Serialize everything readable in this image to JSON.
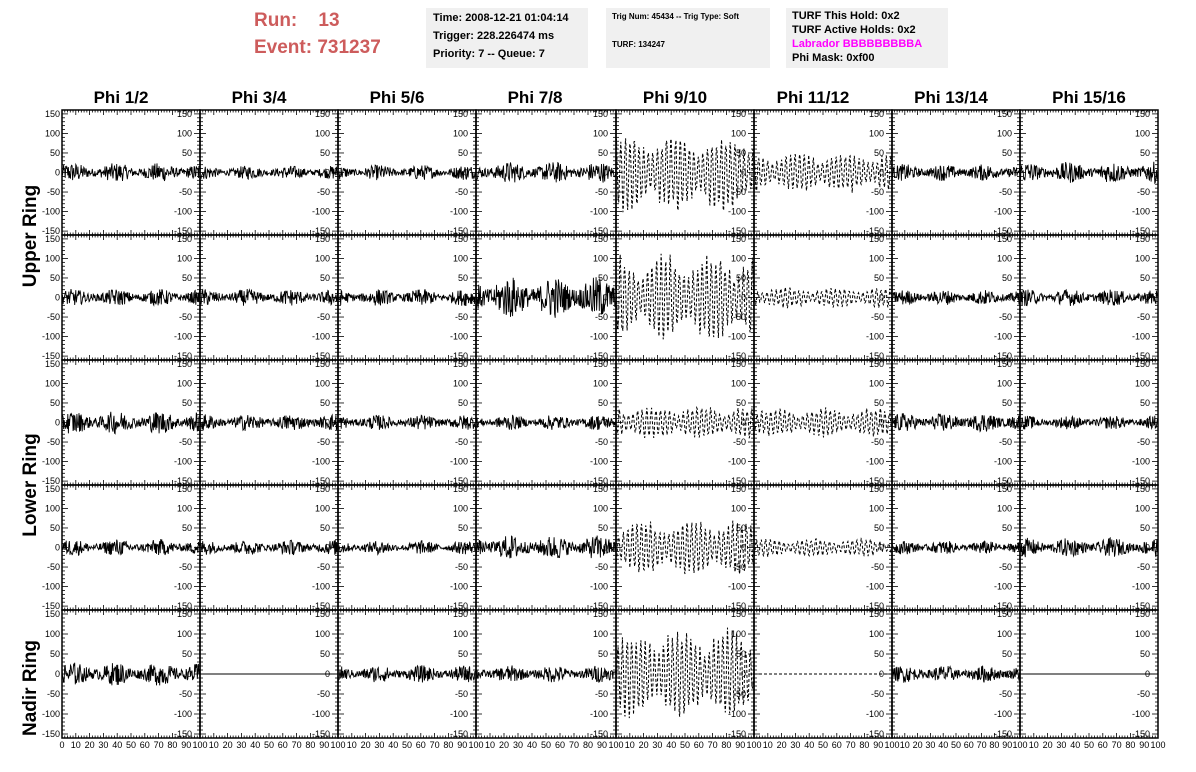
{
  "header": {
    "run_label": "Run:",
    "run_value": "13",
    "event_label": "Event:",
    "event_value": "731237"
  },
  "info_time": {
    "time": "Time: 2008-12-21 01:04:14",
    "trigger": "Trigger: 228.226474 ms",
    "priority": "Priority: 7 -- Queue: 7"
  },
  "info_trig": {
    "trig": "Trig Num: 45434 -- Trig Type: Soft",
    "turf": "TURF: 134247"
  },
  "info_turf": {
    "this_hold": "TURF This Hold: 0x2",
    "active_holds": "TURF Active Holds: 0x2",
    "labrador": "Labrador BBBBBBBBBA",
    "phi_mask": "Phi Mask: 0xf00"
  },
  "colors": {
    "run_text": "#cd5c5c",
    "labrador_text": "#ff00ff",
    "info_bg": "#f0f0f0",
    "trace": "#000000"
  },
  "columns": [
    "Phi 1/2",
    "Phi 3/4",
    "Phi 5/6",
    "Phi 7/8",
    "Phi 9/10",
    "Phi 11/12",
    "Phi 13/14",
    "Phi 15/16"
  ],
  "rows": [
    "Upper Ring",
    "Upper Ring",
    "Lower Ring",
    "Lower Ring",
    "Nadir Ring"
  ],
  "row_labels": [
    {
      "text": "Upper Ring",
      "rows": [
        0,
        1
      ]
    },
    {
      "text": "Lower Ring",
      "rows": [
        2,
        3
      ]
    },
    {
      "text": "Nadir Ring",
      "rows": [
        4
      ]
    }
  ],
  "chart_data": {
    "type": "line",
    "xlim": [
      0,
      100
    ],
    "ylim": [
      -160,
      160
    ],
    "y_ticks": [
      -150,
      -100,
      -50,
      0,
      50,
      100,
      150
    ],
    "x_tick_labels": [
      "0",
      "10",
      "20",
      "30",
      "40",
      "50",
      "60",
      "70",
      "80",
      "90",
      "100"
    ],
    "panel_amplitudes": [
      [
        25,
        18,
        20,
        28,
        110,
        55,
        22,
        28
      ],
      [
        22,
        22,
        22,
        55,
        120,
        28,
        20,
        22
      ],
      [
        30,
        22,
        20,
        20,
        45,
        40,
        25,
        18
      ],
      [
        22,
        20,
        18,
        32,
        75,
        25,
        18,
        25
      ],
      [
        30,
        0,
        22,
        22,
        120,
        0,
        22,
        0
      ]
    ],
    "dashed_columns": [
      4,
      5
    ],
    "flat_panels": [
      [
        4,
        1
      ],
      [
        4,
        5
      ],
      [
        4,
        7
      ]
    ]
  }
}
